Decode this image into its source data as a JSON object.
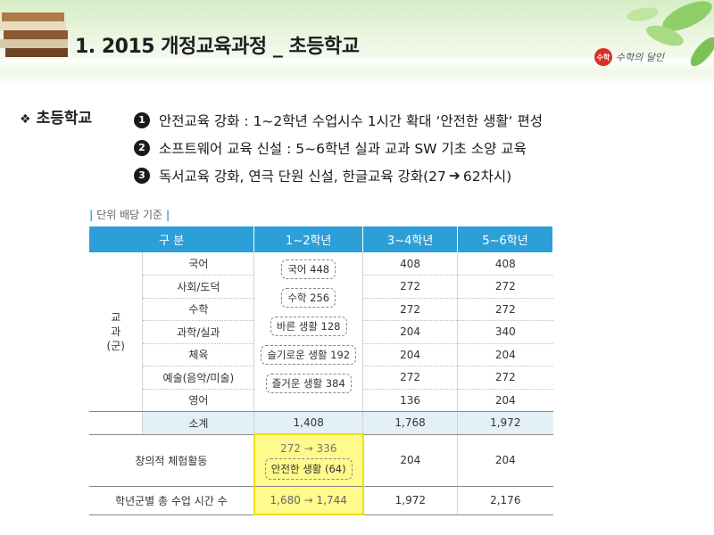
{
  "header": {
    "title": "1. 2015 개정교육과정 _ 초등학교",
    "logo_text": "수학의 달인",
    "logo_mark": "수학"
  },
  "section": {
    "label": "초등학교",
    "items": [
      {
        "num": "1",
        "text": "안전교육 강화 : 1~2학년 수업시수 1시간 확대 ‘안전한 생활‘ 편성"
      },
      {
        "num": "2",
        "text": "소프트웨어 교육 신설 : 5~6학년 실과 교과 SW 기초 소양 교육"
      },
      {
        "num": "3",
        "text_before": "독서교육 강화, 연극 단원 신설, 한글교육 강화(27",
        "text_after": "62차시)"
      }
    ]
  },
  "table": {
    "caption": "단위 배당 기준",
    "headers": [
      "구 분",
      "1~2학년",
      "3~4학년",
      "5~6학년"
    ],
    "group_label": "교\n과\n(군)",
    "subjects": [
      {
        "name": "국어",
        "g34": "408",
        "g56": "408"
      },
      {
        "name": "사회/도덕",
        "g34": "272",
        "g56": "272"
      },
      {
        "name": "수학",
        "g34": "272",
        "g56": "272"
      },
      {
        "name": "과학/실과",
        "g34": "204",
        "g56": "340"
      },
      {
        "name": "체육",
        "g34": "204",
        "g56": "204"
      },
      {
        "name": "예술(음악/미술)",
        "g34": "272",
        "g56": "272"
      },
      {
        "name": "영어",
        "g34": "136",
        "g56": "204"
      }
    ],
    "grade12_boxes": [
      "국어 448",
      "수학 256",
      "바른 생활 128",
      "슬기로운 생활 192",
      "즐거운 생활 384"
    ],
    "subtotal": {
      "name": "소계",
      "g12": "1,408",
      "g34": "1,768",
      "g56": "1,972"
    },
    "creative": {
      "name": "창의적 체험활동",
      "g12_line1": "272 → 336",
      "g12_line2": "안전한 생활 (64)",
      "g34": "204",
      "g56": "204"
    },
    "total": {
      "name": "학년군별 총 수업 시간 수",
      "g12": "1,680 → 1,744",
      "g34": "1,972",
      "g56": "2,176"
    }
  },
  "colors": {
    "header_blue": "#2d9fd8",
    "highlight_yellow": "#fffa8c",
    "subtotal_bg": "#e4f0f8"
  }
}
